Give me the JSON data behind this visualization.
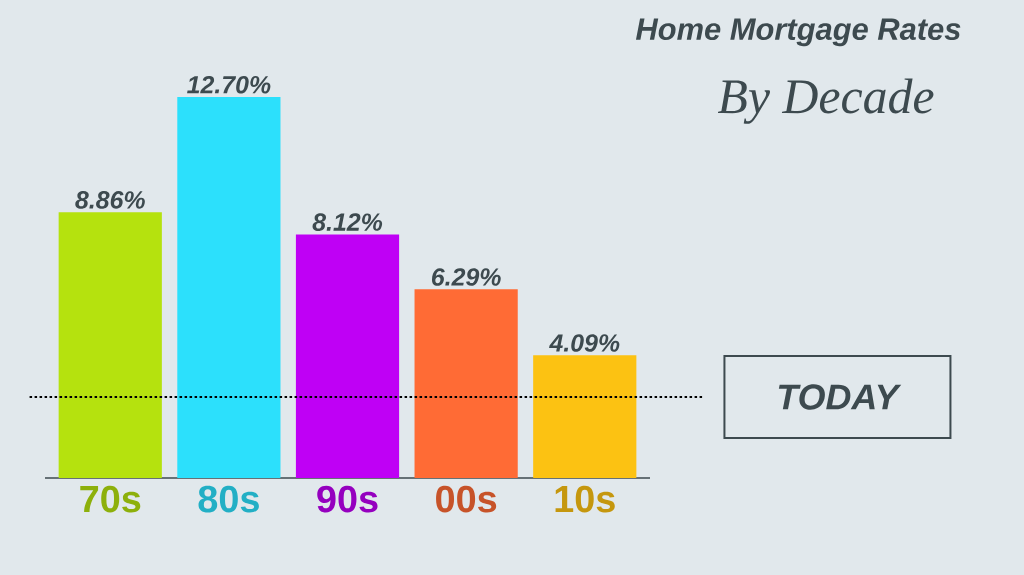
{
  "chart_data": {
    "type": "bar",
    "title": "Home Mortgage Rates",
    "subtitle": "By Decade",
    "categories": [
      "70s",
      "80s",
      "90s",
      "00s",
      "10s"
    ],
    "values": [
      8.86,
      12.7,
      8.12,
      6.29,
      4.09
    ],
    "colors": [
      "#b5e20e",
      "#2ce0fc",
      "#bf00f5",
      "#ff6b35",
      "#fcc212"
    ],
    "value_labels": [
      "8.86%",
      "12.70%",
      "8.12%",
      "6.29%",
      "4.09%"
    ],
    "ref_lines": [
      {
        "axis": "y",
        "value": 2.7,
        "label": "TODAY",
        "line_style": "dotted",
        "color": "#000000"
      }
    ]
  }
}
